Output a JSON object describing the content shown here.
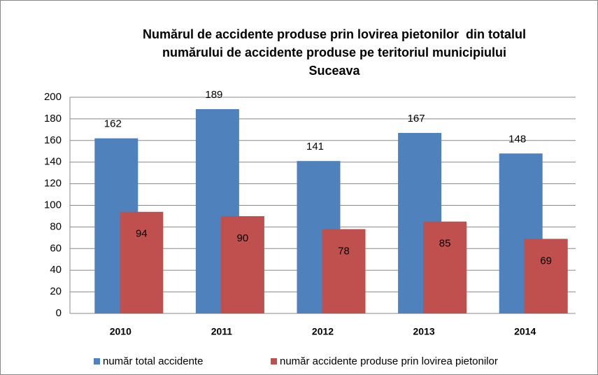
{
  "chart_data": {
    "type": "bar",
    "title": [
      "Numărul de accidente produse prin lovirea pietonilor  din totalul",
      "numărului de accidente produse pe teritoriul municipiului",
      "Suceava"
    ],
    "categories": [
      "2010",
      "2011",
      "2012",
      "2013",
      "2014"
    ],
    "series": [
      {
        "name": "număr total accidente",
        "color": "#4f81bd",
        "values": [
          162,
          189,
          141,
          167,
          148
        ]
      },
      {
        "name": "număr accidente produse prin lovirea pietonilor",
        "color": "#c0504d",
        "values": [
          94,
          90,
          78,
          85,
          69
        ]
      }
    ],
    "ylim": [
      0,
      200
    ],
    "yticks": [
      0,
      20,
      40,
      60,
      80,
      100,
      120,
      140,
      160,
      180,
      200
    ],
    "grid": true,
    "legend": "bottom"
  }
}
